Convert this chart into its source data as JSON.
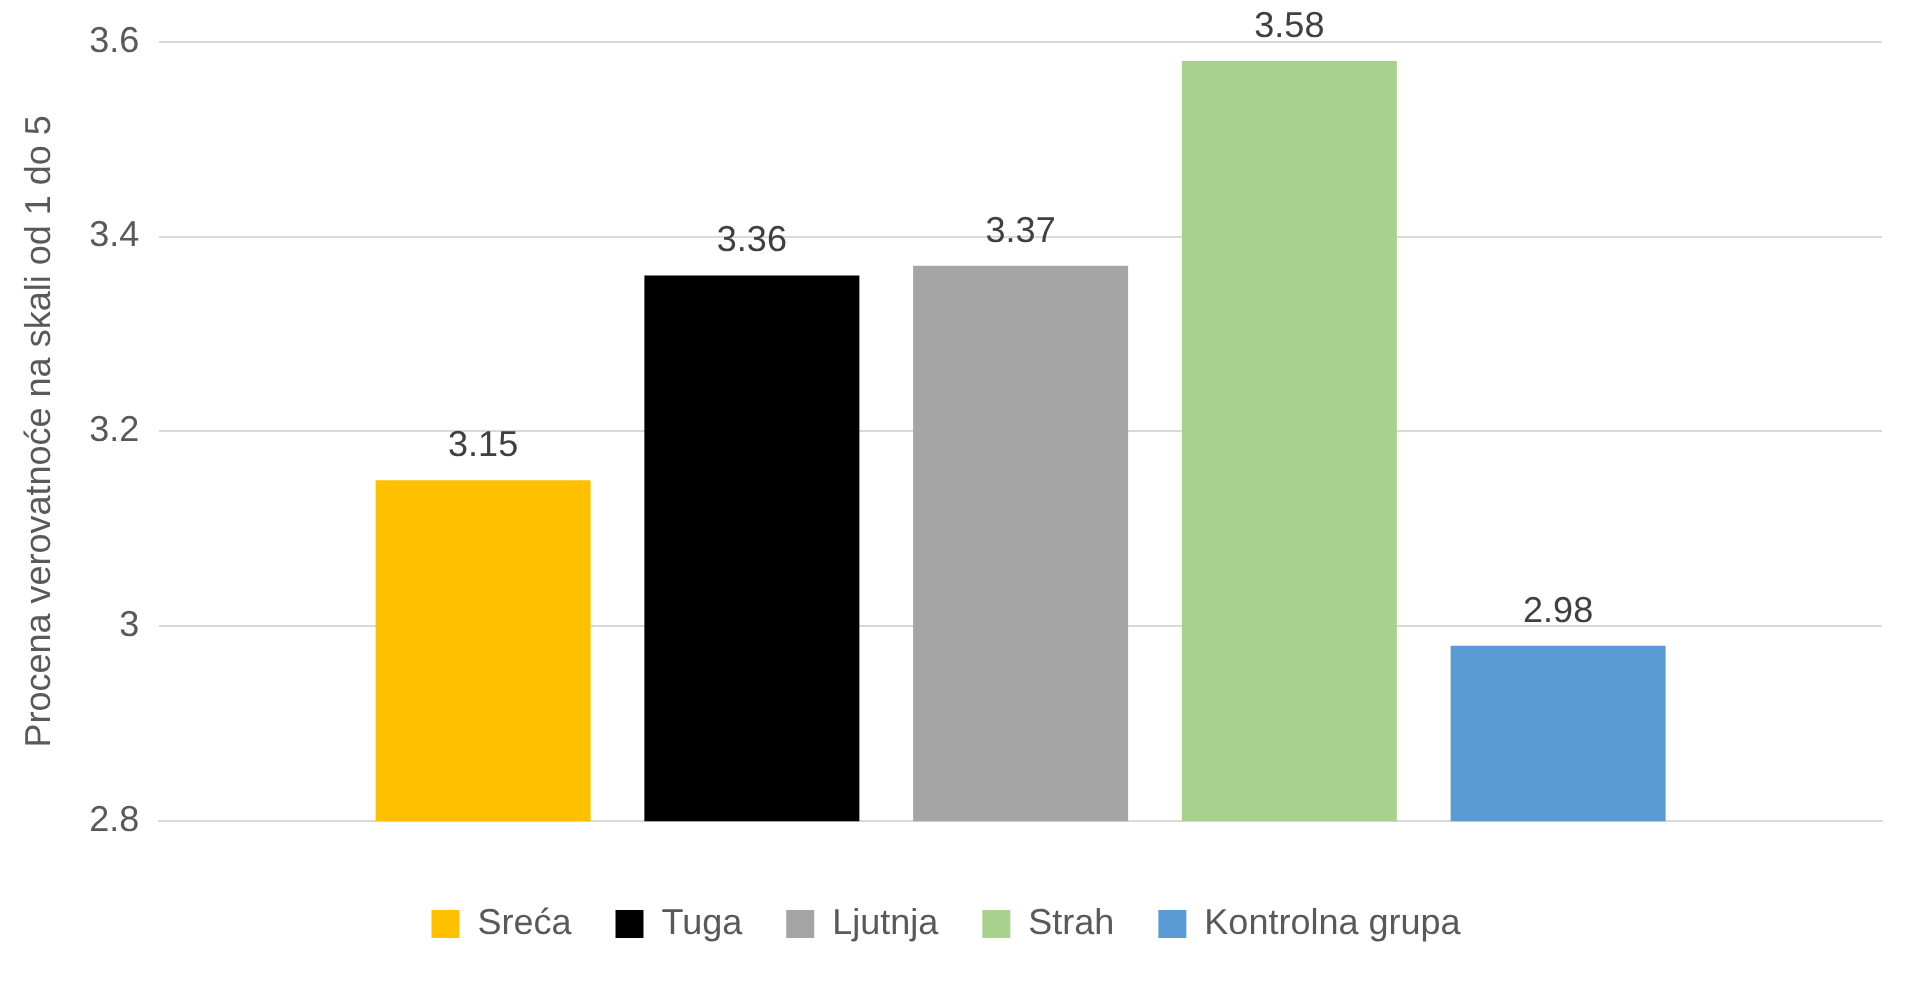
{
  "chart_data": {
    "type": "bar",
    "ylabel": "Procena verovatnoće na skali od 1 do 5",
    "categories": [
      null
    ],
    "series": [
      {
        "name": "Sreća",
        "color": "#ffc000",
        "values": [
          3.15
        ]
      },
      {
        "name": "Tuga",
        "color": "#000000",
        "values": [
          3.36
        ]
      },
      {
        "name": "Ljutnja",
        "color": "#a5a5a5",
        "values": [
          3.37
        ]
      },
      {
        "name": "Strah",
        "color": "#a9d18e",
        "values": [
          3.58
        ]
      },
      {
        "name": "Kontrolna grupa",
        "color": "#5b9bd5",
        "values": [
          2.98
        ]
      }
    ],
    "ylim": [
      2.8,
      3.6
    ],
    "yticks": [
      2.8,
      3,
      3.2,
      3.4,
      3.6
    ],
    "grid": "y",
    "legend": "bottom",
    "data_labels": true
  }
}
